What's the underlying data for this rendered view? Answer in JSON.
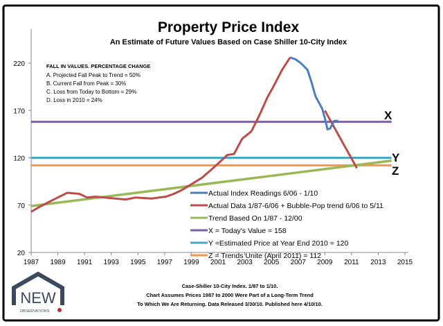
{
  "chart_data": {
    "type": "line",
    "title": "Property Price Index",
    "subtitle": "An Estimate of Future Values Based on Case Shiller 10-City Index",
    "xlabel": "",
    "ylabel": "",
    "xlim": [
      1987,
      2015
    ],
    "ylim": [
      20,
      240
    ],
    "x_ticks": [
      "1987",
      "1989",
      "1991",
      "1993",
      "1995",
      "1997",
      "1999",
      "2001",
      "2003",
      "2005",
      "2007",
      "2009",
      "2011",
      "2013",
      "2015"
    ],
    "y_ticks": [
      "20",
      "70",
      "120",
      "170",
      "220"
    ],
    "grid": false,
    "legend_position": "bottom-right",
    "series": [
      {
        "name": "Actual Index Readings 6/06 - 1/10",
        "color": "#4a7ebb",
        "points": [
          [
            2006.4,
            226
          ],
          [
            2006.8,
            224
          ],
          [
            2007.2,
            220
          ],
          [
            2007.7,
            213
          ],
          [
            2008.0,
            200
          ],
          [
            2008.3,
            185
          ],
          [
            2008.8,
            172
          ],
          [
            2009.0,
            162
          ],
          [
            2009.2,
            150
          ],
          [
            2009.4,
            151
          ],
          [
            2009.7,
            159
          ],
          [
            2010.0,
            159
          ]
        ]
      },
      {
        "name": "Actual Data 1/87-6/06 + Bubble-Pop trend 6/06 to 5/11",
        "color": "#be4b48",
        "points": [
          [
            1987.0,
            63
          ],
          [
            1987.6,
            68
          ],
          [
            1988.7,
            76
          ],
          [
            1989.7,
            83
          ],
          [
            1990.6,
            82
          ],
          [
            1991.2,
            78
          ],
          [
            1991.8,
            79
          ],
          [
            1993.3,
            77
          ],
          [
            1994.1,
            76
          ],
          [
            1994.8,
            78
          ],
          [
            1996.0,
            77
          ],
          [
            1997.1,
            79
          ],
          [
            1997.7,
            82
          ],
          [
            1998.3,
            86
          ],
          [
            1999.0,
            92
          ],
          [
            1999.8,
            99
          ],
          [
            2000.7,
            110
          ],
          [
            2001.7,
            123
          ],
          [
            2002.2,
            124
          ],
          [
            2002.8,
            140
          ],
          [
            2003.5,
            148
          ],
          [
            2004.1,
            165
          ],
          [
            2004.7,
            184
          ],
          [
            2005.1,
            194
          ],
          [
            2005.8,
            213
          ],
          [
            2006.4,
            226
          ]
        ],
        "projection": [
          [
            2009.0,
            170
          ],
          [
            2011.4,
            109
          ]
        ]
      },
      {
        "name": "Trend Based On 1/87 - 12/00",
        "color": "#98b954",
        "points": [
          [
            1987,
            69
          ],
          [
            2014,
            117
          ]
        ]
      },
      {
        "name": "X = Today's Value = 158",
        "color": "#7d60a0",
        "points": [
          [
            1987,
            158
          ],
          [
            2014,
            158
          ]
        ],
        "label": "X"
      },
      {
        "name": "Y =Estimated Price at Year End 2010 = 120",
        "color": "#46aac5",
        "points": [
          [
            1987,
            120
          ],
          [
            2014,
            120
          ]
        ],
        "label": "Y"
      },
      {
        "name": "Z = Trends Unite (April 2011) = 112",
        "color": "#f79646",
        "points": [
          [
            1987,
            112
          ],
          [
            2014,
            112
          ]
        ],
        "label": "Z"
      }
    ],
    "annotation": {
      "heading": "FALL IN VALUES. PERCENTAGE CHANGE",
      "lines": [
        "A. Projected Fall Peak to Trend = 50%",
        "B. Current Fall from Peak = 30%",
        "C. Loss from Today to Bottom = 29%",
        "D. Loss in 2010 =  24%"
      ]
    }
  },
  "footer": {
    "lines": [
      "Case-Shiller 10-City Index. 1/87 to 1/10.",
      "Chart Assumes Prices 1987 to 2000 Were Part of a Long-Term Trend",
      "To Which We Are Returning. Data Released 3/30/10. Published  here 4/10/10."
    ]
  },
  "logo": {
    "text_main": "NEW",
    "text_sub": "OBSERVATIONS",
    "color": "#3a4a5c"
  }
}
